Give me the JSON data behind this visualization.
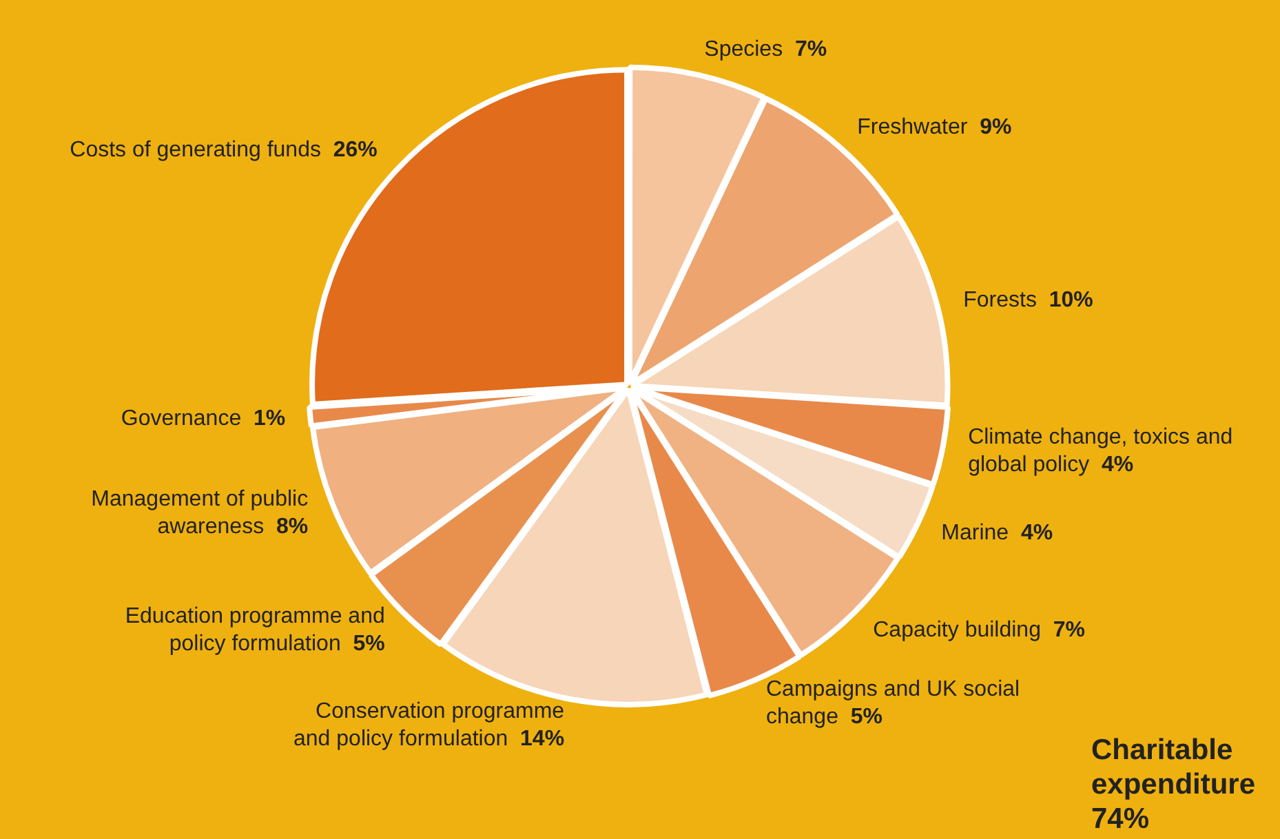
{
  "chart_data": {
    "type": "pie",
    "categories": [
      "Species",
      "Freshwater",
      "Forests",
      "Climate change, toxics and global policy",
      "Marine",
      "Capacity building",
      "Campaigns and UK social change",
      "Conservation programme and policy formulation",
      "Education programme and policy formulation",
      "Management of public awareness",
      "Governance",
      "Costs of generating funds"
    ],
    "values": [
      7,
      9,
      10,
      4,
      4,
      7,
      5,
      14,
      5,
      8,
      1,
      26
    ],
    "value_labels": [
      "7%",
      "9%",
      "10%",
      "4%",
      "4%",
      "7%",
      "5%",
      "14%",
      "5%",
      "8%",
      "1%",
      "26%"
    ],
    "colors": [
      "#f5c49c",
      "#eda46e",
      "#f6d5b8",
      "#e8894a",
      "#f6dcc5",
      "#f0b282",
      "#e8894a",
      "#f6d5b8",
      "#e8914f",
      "#f0b080",
      "#e8894a",
      "#e06c1c"
    ],
    "annotations": [
      "Charitable expenditure 74%"
    ],
    "legend": false
  }
}
